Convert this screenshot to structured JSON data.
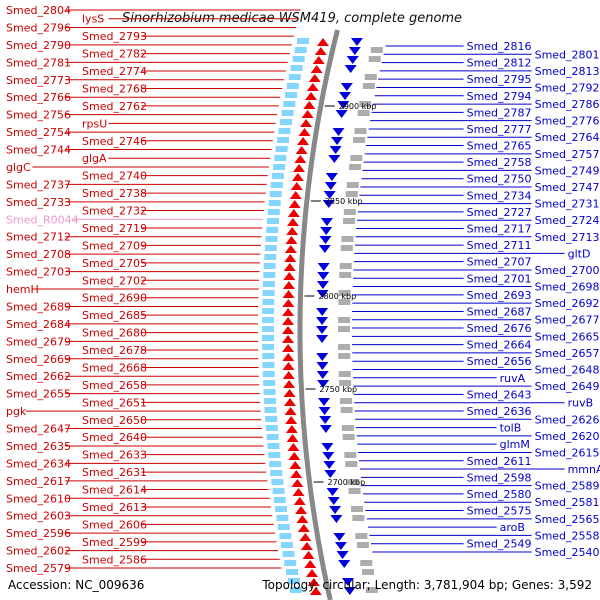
{
  "title": "Sinorhizobium medicae WSM419, complete genome",
  "footer": {
    "accession": "Accession: NC_009636",
    "topology": "Topology: circular; Length: 3,781,904 bp; Genes: 3,592"
  },
  "scale_ticks": [
    "2900 kbp",
    "2850 kbp",
    "2800 kbp",
    "2750 kbp",
    "2700 kbp"
  ],
  "left_labels": [
    "Smed_2804",
    "lysS",
    "Smed_2796",
    "Smed_2793",
    "Smed_2790",
    "Smed_2782",
    "Smed_2781",
    "Smed_2774",
    "Smed_2773",
    "Smed_2768",
    "Smed_2766",
    "Smed_2762",
    "Smed_2756",
    "rpsU",
    "Smed_2754",
    "Smed_2746",
    "Smed_2744",
    "glgA",
    "glgC",
    "Smed_2740",
    "Smed_2737",
    "Smed_2738",
    "Smed_2733",
    "Smed_2732",
    "Smed_R0044",
    "Smed_2719",
    "Smed_2712",
    "Smed_2709",
    "Smed_2708",
    "Smed_2705",
    "Smed_2703",
    "Smed_2702",
    "hemH",
    "Smed_2690",
    "Smed_2689",
    "Smed_2685",
    "Smed_2684",
    "Smed_2680",
    "Smed_2679",
    "Smed_2678",
    "Smed_2669",
    "Smed_2668",
    "Smed_2662",
    "Smed_2658",
    "Smed_2655",
    "Smed_2651",
    "pgk",
    "Smed_2650",
    "Smed_2647",
    "Smed_2640",
    "Smed_2635",
    "Smed_2633",
    "Smed_2634",
    "Smed_2631",
    "Smed_2617",
    "Smed_2614",
    "Smed_2610",
    "Smed_2613",
    "Smed_2603",
    "Smed_2606",
    "Smed_2596",
    "Smed_2599",
    "Smed_2602",
    "Smed_2586",
    "Smed_2579"
  ],
  "right_labels": [
    "Smed_2816",
    "Smed_2801",
    "Smed_2812",
    "Smed_2813",
    "Smed_2795",
    "Smed_2792",
    "Smed_2794",
    "Smed_2786",
    "Smed_2787",
    "Smed_2776",
    "Smed_2777",
    "Smed_2764",
    "Smed_2765",
    "Smed_2757",
    "Smed_2758",
    "Smed_2749",
    "Smed_2750",
    "Smed_2747",
    "Smed_2734",
    "Smed_2731",
    "Smed_2727",
    "Smed_2724",
    "Smed_2717",
    "Smed_2713",
    "Smed_2711",
    "gltD",
    "Smed_2707",
    "Smed_2700",
    "Smed_2701",
    "Smed_2698",
    "Smed_2693",
    "Smed_2692",
    "Smed_2687",
    "Smed_2677",
    "Smed_2676",
    "Smed_2665",
    "Smed_2664",
    "Smed_2657",
    "Smed_2656",
    "Smed_2648",
    "ruvA",
    "Smed_2649",
    "Smed_2643",
    "ruvB",
    "Smed_2636",
    "Smed_2626",
    "tolB",
    "Smed_2620",
    "glmM",
    "Smed_2615",
    "Smed_2611",
    "mmnA",
    "Smed_2598",
    "Smed_2589",
    "Smed_2580",
    "Smed_2581",
    "Smed_2575",
    "Smed_2565",
    "aroB",
    "Smed_2558",
    "Smed_2549",
    "Smed_2540"
  ],
  "colors": {
    "forward": "#ee0000",
    "reverse": "#0000dd",
    "label_left": "#cc0000",
    "label_right": "#0000cc",
    "rna": "#ee99cc",
    "backbone": "#888888",
    "tick_marker": "#228b22"
  }
}
